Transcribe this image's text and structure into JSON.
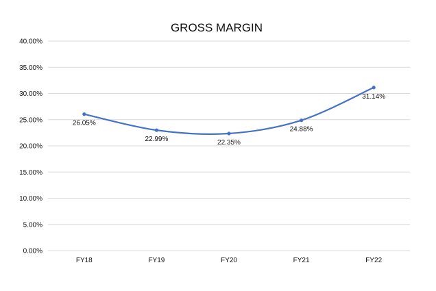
{
  "chart_data": {
    "type": "line",
    "title": "GROSS MARGIN",
    "categories": [
      "FY18",
      "FY19",
      "FY20",
      "FY21",
      "FY22"
    ],
    "series": [
      {
        "values": [
          26.05,
          22.99,
          22.35,
          24.88,
          31.14
        ]
      }
    ],
    "data_labels": [
      "26.05%",
      "22.99%",
      "22.35%",
      "24.88%",
      "31.14%"
    ],
    "y_ticks": [
      0,
      5,
      10,
      15,
      20,
      25,
      30,
      35,
      40
    ],
    "y_tick_labels": [
      "0.00%",
      "5.00%",
      "10.00%",
      "15.00%",
      "20.00%",
      "25.00%",
      "30.00%",
      "35.00%",
      "40.00%"
    ],
    "ylim": [
      0,
      40
    ],
    "y_unit": "%",
    "grid": true,
    "legend": false,
    "smooth": true,
    "line_color": "#4472C4",
    "grid_color": "#D9D9D9"
  }
}
